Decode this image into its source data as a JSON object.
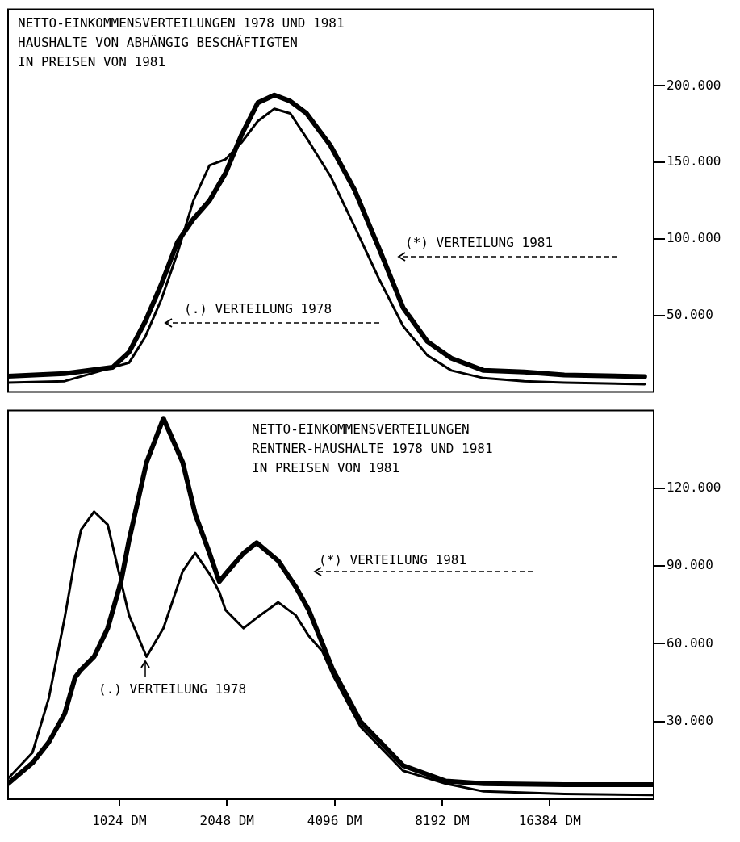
{
  "chart_data": [
    {
      "type": "line",
      "title": "NETTO-EINKOMMENSVERTEILUNGEN 1978 UND 1981\nHAUSHALTE VON ABHÄNGIG BESCHÄFTIGTEN\nIN PREISEN VON 1981",
      "log": "x",
      "tick_labels": "y",
      "x": [
        500,
        720,
        980,
        1090,
        1210,
        1340,
        1490,
        1650,
        1830,
        2030,
        2250,
        2500,
        2780,
        3080,
        3420,
        3990,
        4660,
        5450,
        6370,
        7440,
        8690,
        10700,
        13900,
        18000,
        30200
      ],
      "series": [
        {
          "name": "(.) VERTEILUNG 1978",
          "color": "#000000",
          "values": [
            6000,
            7000,
            16000,
            19000,
            36000,
            60000,
            91000,
            125000,
            148000,
            152000,
            163000,
            177000,
            185000,
            182000,
            166000,
            141000,
            108000,
            74000,
            43000,
            24000,
            14000,
            9000,
            7000,
            6000,
            5000
          ]
        },
        {
          "name": "(*) VERTEILUNG 1981",
          "color": "#000000",
          "values": [
            10300,
            12000,
            16000,
            26000,
            46000,
            70000,
            98000,
            113000,
            125000,
            143000,
            168000,
            189000,
            194000,
            190000,
            182000,
            161000,
            132000,
            94000,
            55000,
            33000,
            22000,
            14000,
            13000,
            11000,
            10000
          ]
        }
      ],
      "xlim": [
        500,
        32000
      ],
      "ylim": [
        0,
        250000
      ],
      "yticks": [
        {
          "value": 50000,
          "label": "50.000"
        },
        {
          "value": 100000,
          "label": "100.000"
        },
        {
          "value": 150000,
          "label": "150.000"
        },
        {
          "value": 200000,
          "label": "200.000"
        }
      ]
    },
    {
      "type": "line",
      "title": "NETTO-EINKOMMENSVERTEILUNGEN\nRENTNER-HAUSHALTE 1978 UND 1981\nIN PREISEN VON 1981",
      "log": "x",
      "x": [
        500,
        585,
        650,
        720,
        770,
        800,
        870,
        950,
        1035,
        1090,
        1220,
        1360,
        1540,
        1670,
        1830,
        1950,
        2030,
        2280,
        2480,
        2850,
        3190,
        3470,
        3790,
        4050,
        4840,
        6370,
        8390,
        10700,
        18000,
        31800
      ],
      "series": [
        {
          "name": "(.) VERTEILUNG 1978",
          "color": "#000000",
          "values": [
            8000,
            18000,
            39000,
            70000,
            93000,
            104000,
            111000,
            106000,
            84000,
            71000,
            55000,
            66000,
            88000,
            95000,
            87000,
            80000,
            73000,
            66000,
            70000,
            76000,
            71000,
            63000,
            57000,
            48000,
            28000,
            11000,
            6000,
            3000,
            2000,
            1600
          ]
        },
        {
          "name": "(*) VERTEILUNG 1981",
          "color": "#000000",
          "values": [
            6000,
            14000,
            22000,
            33000,
            47000,
            50000,
            55000,
            66000,
            84000,
            100000,
            130000,
            147000,
            130000,
            110000,
            95000,
            84000,
            87000,
            95000,
            99000,
            92000,
            82000,
            73000,
            60000,
            50000,
            30000,
            13000,
            7000,
            6000,
            5600,
            5600
          ]
        }
      ],
      "xlim": [
        500,
        32000
      ],
      "xticks": [
        {
          "value": 1024,
          "label": "1024 DM"
        },
        {
          "value": 2048,
          "label": "2048 DM"
        },
        {
          "value": 4096,
          "label": "4096 DM"
        },
        {
          "value": 8192,
          "label": "8192 DM"
        },
        {
          "value": 16384,
          "label": "16384 DM"
        }
      ],
      "ylim": [
        0,
        150000
      ],
      "yticks": [
        {
          "value": 30000,
          "label": "30.000"
        },
        {
          "value": 60000,
          "label": "60.000"
        },
        {
          "value": 90000,
          "label": "90.000"
        },
        {
          "value": 120000,
          "label": "120.000"
        }
      ]
    }
  ]
}
